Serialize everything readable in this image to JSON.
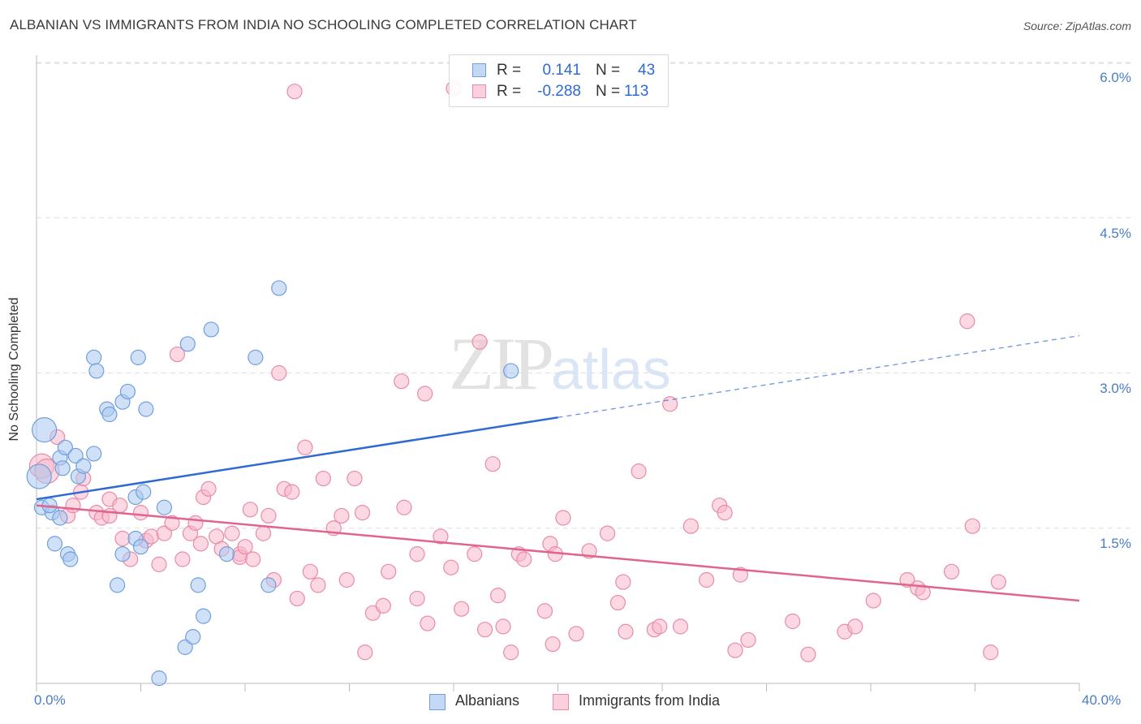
{
  "header": {
    "title": "ALBANIAN VS IMMIGRANTS FROM INDIA NO SCHOOLING COMPLETED CORRELATION CHART",
    "source": "Source: ZipAtlas.com"
  },
  "watermark": {
    "zip": "ZIP",
    "atlas": "atlas"
  },
  "legend_top": {
    "rows": [
      {
        "r_label": "R =",
        "r_value": "0.141",
        "n_label": "N =",
        "n_value": "43"
      },
      {
        "r_label": "R =",
        "r_value": "-0.288",
        "n_label": "N =",
        "n_value": "113"
      }
    ]
  },
  "legend_bottom": {
    "items": [
      "Albanians",
      "Immigrants from India"
    ]
  },
  "colors": {
    "blue_fill": "#a9c8f0",
    "blue_stroke": "#6f9fdc",
    "blue_line": "#2e6ad1",
    "pink_fill": "#f7b8cb",
    "pink_stroke": "#e98aa8",
    "pink_line": "#e0648f",
    "tick_text": "#4a7cc9",
    "grid": "#dddddd"
  },
  "chart_data": {
    "type": "scatter",
    "title": "ALBANIAN VS IMMIGRANTS FROM INDIA NO SCHOOLING COMPLETED CORRELATION CHART",
    "xlabel": "",
    "ylabel": "No Schooling Completed",
    "xlim": [
      0,
      40
    ],
    "ylim": [
      0,
      6.3
    ],
    "x_tick_labels": [
      "0.0%",
      "40.0%"
    ],
    "y_ticks": [
      1.5,
      3.0,
      4.5,
      6.0
    ],
    "y_tick_labels": [
      "1.5%",
      "3.0%",
      "4.5%",
      "6.0%"
    ],
    "grid": "horizontal dashed",
    "legend_position": "top-center",
    "series": [
      {
        "name": "Albanians",
        "color": "#a9c8f0",
        "R": 0.141,
        "N": 43,
        "points": [
          [
            0.1,
            2.0
          ],
          [
            0.3,
            2.45
          ],
          [
            0.2,
            1.7
          ],
          [
            0.6,
            1.65
          ],
          [
            0.5,
            1.72
          ],
          [
            0.9,
            1.6
          ],
          [
            0.9,
            2.18
          ],
          [
            0.7,
            1.35
          ],
          [
            1.0,
            2.08
          ],
          [
            1.1,
            2.28
          ],
          [
            1.2,
            1.25
          ],
          [
            1.5,
            2.2
          ],
          [
            1.3,
            1.2
          ],
          [
            1.6,
            2.0
          ],
          [
            1.8,
            2.1
          ],
          [
            2.2,
            2.22
          ],
          [
            2.2,
            3.15
          ],
          [
            2.3,
            3.02
          ],
          [
            2.7,
            2.65
          ],
          [
            2.8,
            2.6
          ],
          [
            3.3,
            2.72
          ],
          [
            3.5,
            2.82
          ],
          [
            3.9,
            3.15
          ],
          [
            3.8,
            1.8
          ],
          [
            3.1,
            0.95
          ],
          [
            3.3,
            1.25
          ],
          [
            3.8,
            1.4
          ],
          [
            4.1,
            1.85
          ],
          [
            4.2,
            2.65
          ],
          [
            4.9,
            1.7
          ],
          [
            5.7,
            0.35
          ],
          [
            5.8,
            3.28
          ],
          [
            6.0,
            0.45
          ],
          [
            6.2,
            0.95
          ],
          [
            6.4,
            0.65
          ],
          [
            6.7,
            3.42
          ],
          [
            7.3,
            1.25
          ],
          [
            8.4,
            3.15
          ],
          [
            8.9,
            0.95
          ],
          [
            9.3,
            3.82
          ],
          [
            18.2,
            3.02
          ],
          [
            4.7,
            0.05
          ],
          [
            4.0,
            1.32
          ]
        ]
      },
      {
        "name": "Immigrants from India",
        "color": "#f7b8cb",
        "R": -0.288,
        "N": 113,
        "points": [
          [
            0.2,
            2.1
          ],
          [
            0.4,
            2.05
          ],
          [
            0.8,
            2.38
          ],
          [
            1.2,
            1.62
          ],
          [
            1.4,
            1.72
          ],
          [
            1.7,
            1.85
          ],
          [
            1.8,
            1.98
          ],
          [
            2.3,
            1.65
          ],
          [
            2.5,
            1.6
          ],
          [
            2.8,
            1.62
          ],
          [
            2.8,
            1.78
          ],
          [
            3.2,
            1.72
          ],
          [
            3.3,
            1.4
          ],
          [
            3.6,
            1.2
          ],
          [
            4.0,
            1.65
          ],
          [
            4.2,
            1.38
          ],
          [
            4.4,
            1.42
          ],
          [
            4.7,
            1.15
          ],
          [
            4.9,
            1.45
          ],
          [
            5.2,
            1.55
          ],
          [
            5.4,
            3.18
          ],
          [
            5.6,
            1.2
          ],
          [
            5.9,
            1.45
          ],
          [
            6.1,
            1.55
          ],
          [
            6.3,
            1.35
          ],
          [
            6.4,
            1.8
          ],
          [
            6.6,
            1.88
          ],
          [
            6.9,
            1.42
          ],
          [
            7.1,
            1.3
          ],
          [
            7.5,
            1.45
          ],
          [
            7.8,
            1.25
          ],
          [
            7.8,
            1.22
          ],
          [
            8.0,
            1.32
          ],
          [
            8.2,
            1.68
          ],
          [
            8.3,
            1.2
          ],
          [
            8.7,
            1.45
          ],
          [
            8.9,
            1.62
          ],
          [
            9.1,
            1.0
          ],
          [
            9.3,
            3.0
          ],
          [
            9.5,
            1.88
          ],
          [
            9.8,
            1.85
          ],
          [
            10.0,
            0.82
          ],
          [
            10.3,
            2.28
          ],
          [
            10.5,
            1.08
          ],
          [
            10.8,
            0.95
          ],
          [
            11.0,
            1.98
          ],
          [
            11.4,
            1.5
          ],
          [
            11.7,
            1.62
          ],
          [
            11.9,
            1.0
          ],
          [
            12.2,
            1.98
          ],
          [
            12.5,
            1.65
          ],
          [
            12.6,
            0.3
          ],
          [
            12.9,
            0.68
          ],
          [
            13.3,
            0.75
          ],
          [
            13.5,
            1.08
          ],
          [
            14.0,
            2.92
          ],
          [
            14.1,
            1.7
          ],
          [
            14.6,
            0.82
          ],
          [
            14.9,
            2.8
          ],
          [
            14.6,
            1.25
          ],
          [
            15.0,
            0.58
          ],
          [
            15.5,
            1.42
          ],
          [
            15.9,
            1.12
          ],
          [
            16.3,
            0.72
          ],
          [
            16.8,
            1.25
          ],
          [
            17.2,
            0.52
          ],
          [
            17.5,
            2.12
          ],
          [
            17.7,
            0.85
          ],
          [
            17.9,
            0.55
          ],
          [
            18.2,
            0.3
          ],
          [
            18.5,
            1.25
          ],
          [
            18.7,
            1.2
          ],
          [
            19.5,
            0.7
          ],
          [
            19.7,
            1.35
          ],
          [
            19.8,
            0.38
          ],
          [
            19.9,
            1.25
          ],
          [
            20.2,
            1.6
          ],
          [
            20.7,
            0.48
          ],
          [
            21.2,
            1.28
          ],
          [
            21.9,
            1.45
          ],
          [
            22.3,
            0.78
          ],
          [
            22.5,
            0.98
          ],
          [
            22.6,
            0.5
          ],
          [
            23.1,
            2.05
          ],
          [
            23.7,
            0.52
          ],
          [
            23.9,
            0.55
          ],
          [
            24.3,
            2.7
          ],
          [
            24.7,
            0.55
          ],
          [
            25.1,
            1.52
          ],
          [
            25.7,
            1.0
          ],
          [
            26.2,
            1.72
          ],
          [
            26.4,
            1.65
          ],
          [
            26.8,
            0.32
          ],
          [
            27.0,
            1.05
          ],
          [
            27.3,
            0.42
          ],
          [
            29.0,
            0.6
          ],
          [
            29.6,
            0.28
          ],
          [
            31.0,
            0.5
          ],
          [
            31.4,
            0.55
          ],
          [
            32.1,
            0.8
          ],
          [
            33.4,
            1.0
          ],
          [
            33.8,
            0.92
          ],
          [
            34.0,
            0.88
          ],
          [
            35.1,
            1.08
          ],
          [
            35.7,
            3.5
          ],
          [
            35.9,
            1.52
          ],
          [
            36.6,
            0.3
          ],
          [
            36.9,
            0.98
          ],
          [
            16.0,
            5.75
          ],
          [
            17.0,
            3.3
          ],
          [
            9.9,
            5.72
          ]
        ]
      }
    ],
    "trend_lines": [
      {
        "series": "Albanians",
        "x": [
          0,
          20
        ],
        "y": [
          1.78,
          2.57
        ],
        "dashed_extension": {
          "x": [
            20,
            40
          ],
          "y": [
            2.57,
            3.36
          ]
        }
      },
      {
        "series": "Immigrants from India",
        "x": [
          0,
          40
        ],
        "y": [
          1.72,
          0.8
        ]
      }
    ]
  }
}
